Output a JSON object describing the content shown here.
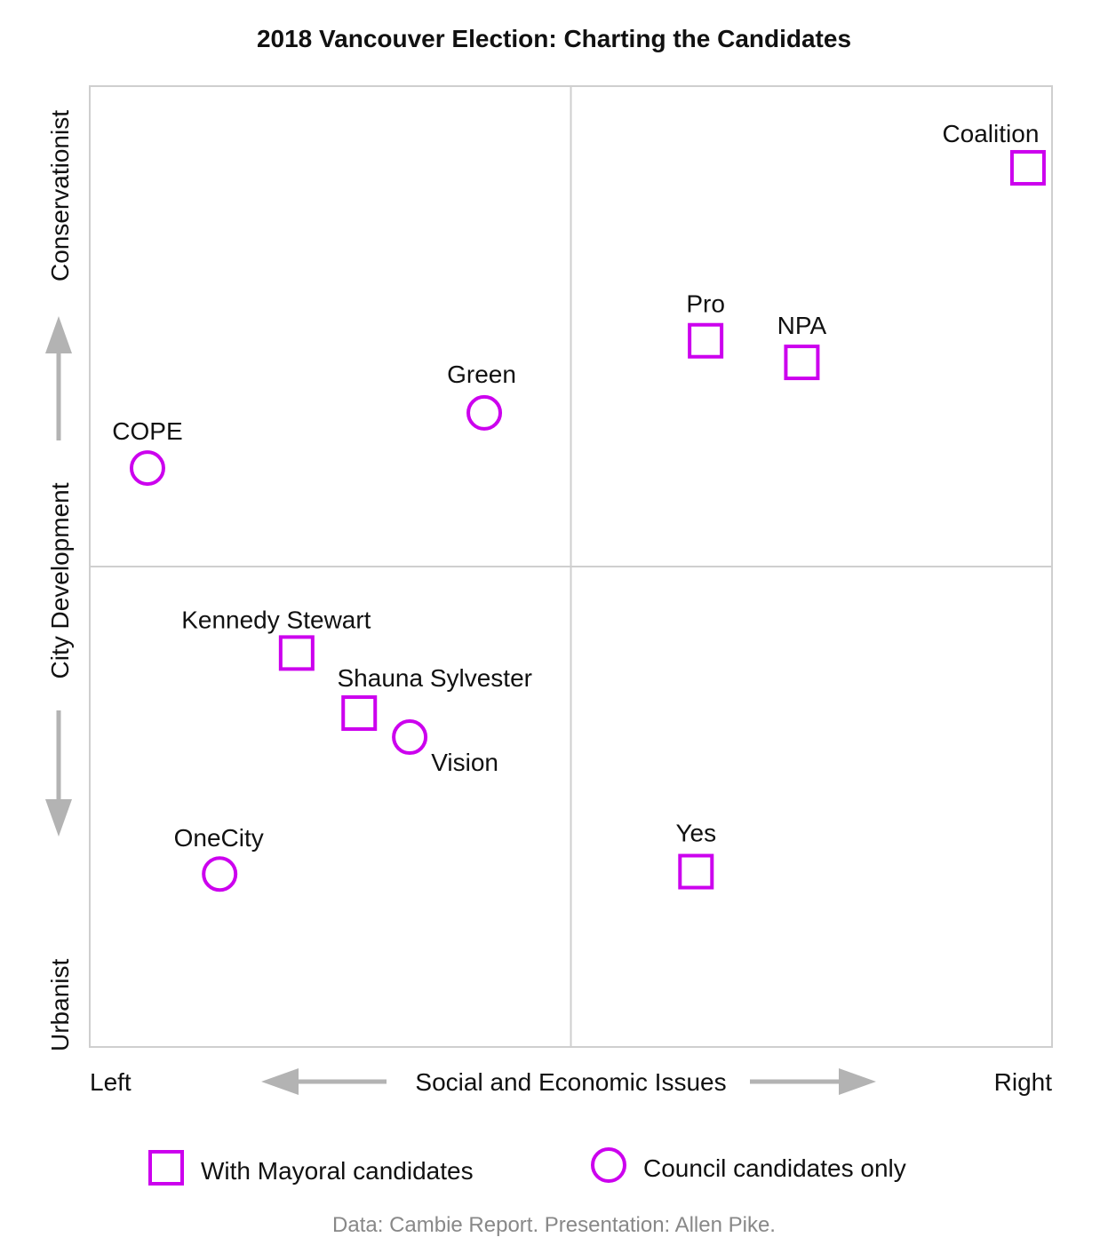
{
  "chart_data": {
    "type": "scatter",
    "title": "2018 Vancouver Election: Charting the Candidates",
    "xlabel": "Social and Economic Issues",
    "x_left_label": "Left",
    "x_right_label": "Right",
    "ylabel": "City Development",
    "y_top_label": "Conservationist",
    "y_bottom_label": "Urbanist",
    "xlim": [
      -1,
      1
    ],
    "ylim": [
      -1,
      1
    ],
    "grid": "quadrants",
    "marker_color": "#cc00ee",
    "series": [
      {
        "name": "With Mayoral candidates",
        "marker": "square",
        "points": [
          {
            "label": "Coalition",
            "x": 0.95,
            "y": 0.83
          },
          {
            "label": "Pro",
            "x": 0.28,
            "y": 0.47
          },
          {
            "label": "NPA",
            "x": 0.48,
            "y": 0.425
          },
          {
            "label": "Kennedy Stewart",
            "x": -0.57,
            "y": -0.18
          },
          {
            "label": "Shauna Sylvester",
            "x": -0.44,
            "y": -0.305
          },
          {
            "label": "Yes",
            "x": 0.26,
            "y": -0.635
          }
        ]
      },
      {
        "name": "Council candidates only",
        "marker": "circle",
        "points": [
          {
            "label": "COPE",
            "x": -0.88,
            "y": 0.205
          },
          {
            "label": "Green",
            "x": -0.18,
            "y": 0.32
          },
          {
            "label": "Vision",
            "x": -0.335,
            "y": -0.355
          },
          {
            "label": "OneCity",
            "x": -0.73,
            "y": -0.64
          }
        ]
      }
    ],
    "credit": "Data: Cambie Report. Presentation: Allen Pike."
  }
}
